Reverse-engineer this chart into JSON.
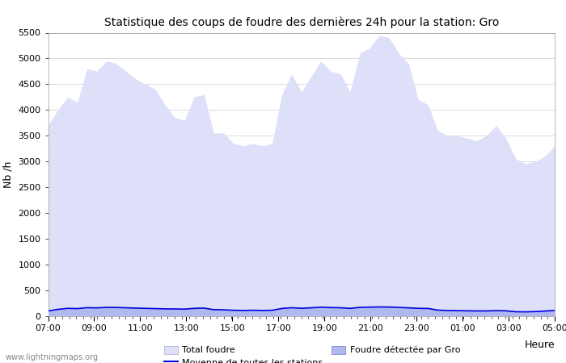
{
  "title": "Statistique des coups de foudre des dernières 24h pour la station: Gro",
  "xlabel": "Heure",
  "ylabel": "Nb /h",
  "ylim": [
    0,
    5500
  ],
  "yticks": [
    0,
    500,
    1000,
    1500,
    2000,
    2500,
    3000,
    3500,
    4000,
    4500,
    5000,
    5500
  ],
  "xtick_labels": [
    "07:00",
    "09:00",
    "11:00",
    "13:00",
    "15:00",
    "17:00",
    "19:00",
    "21:00",
    "23:00",
    "01:00",
    "03:00",
    "05:00"
  ],
  "background_color": "#ffffff",
  "plot_bg_color": "#ffffff",
  "watermark": "www.lightningmaps.org",
  "total_foudre_color": "#dde0f8",
  "gro_color": "#b0b8f0",
  "moyenne_color": "#0000dd",
  "total_foudre_values": [
    3700,
    4000,
    4250,
    4150,
    4800,
    4750,
    4950,
    4900,
    4750,
    4600,
    4500,
    4400,
    4100,
    3850,
    3800,
    4250,
    4300,
    3550,
    3550,
    3350,
    3300,
    3350,
    3300,
    3350,
    4300,
    4700,
    4350,
    4650,
    4950,
    4750,
    4700,
    4350,
    5100,
    5200,
    5450,
    5400,
    5100,
    4900,
    4200,
    4100,
    3600,
    3500,
    3500,
    3450,
    3400,
    3500,
    3700,
    3450,
    3050,
    2950,
    3000,
    3100,
    3300
  ],
  "gro_values": [
    100,
    130,
    150,
    145,
    165,
    160,
    170,
    168,
    162,
    155,
    150,
    145,
    140,
    138,
    135,
    150,
    155,
    125,
    120,
    112,
    108,
    112,
    108,
    112,
    148,
    162,
    152,
    160,
    172,
    165,
    162,
    150,
    170,
    175,
    178,
    175,
    168,
    160,
    150,
    148,
    115,
    108,
    105,
    100,
    98,
    98,
    105,
    100,
    82,
    80,
    85,
    95,
    108
  ],
  "moyenne_values": [
    95,
    125,
    145,
    140,
    158,
    154,
    164,
    162,
    156,
    150,
    145,
    140,
    135,
    133,
    130,
    145,
    150,
    120,
    116,
    108,
    104,
    108,
    104,
    108,
    143,
    157,
    147,
    155,
    167,
    160,
    157,
    145,
    164,
    169,
    172,
    170,
    163,
    155,
    145,
    143,
    111,
    104,
    101,
    97,
    95,
    95,
    101,
    97,
    79,
    77,
    82,
    92,
    104
  ]
}
